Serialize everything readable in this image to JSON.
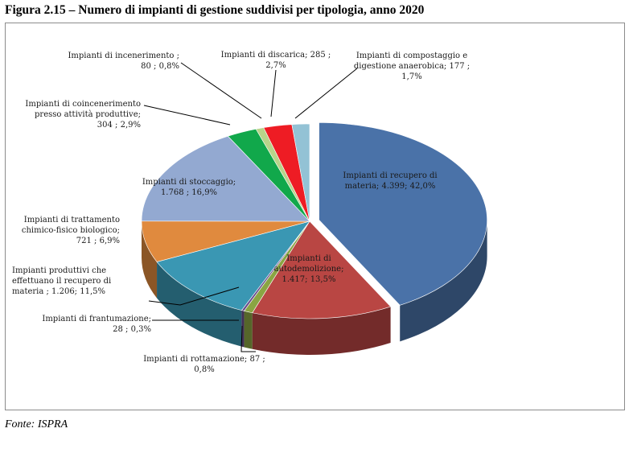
{
  "title": "Figura 2.15 – Numero di impianti di gestione suddivisi per tipologia, anno 2020",
  "source": "Fonte: ISPRA",
  "chart_data": {
    "type": "pie",
    "style": "3d-exploded",
    "legend": "none",
    "slices": [
      {
        "name": "Impianti di recupero di materia",
        "value": 4399,
        "value_label": "4.399",
        "percent_label": "42,0%",
        "color": "#4a72a8",
        "label_lines": [
          "Impianti di recupero di",
          "materia;  4.399; 42,0%"
        ]
      },
      {
        "name": "Impianti di autodemolizione",
        "value": 1417,
        "value_label": "1.417",
        "percent_label": "13,5%",
        "color": "#b94643",
        "label_lines": [
          "Impianti di",
          "autodemolizione;",
          "1.417; 13,5%"
        ]
      },
      {
        "name": "Impianti di rottamazione",
        "value": 87,
        "value_label": "87",
        "percent_label": "0,8%",
        "color": "#8aa543",
        "label_lines": [
          "Impianti di rottamazione;  87 ;",
          "0,8%"
        ]
      },
      {
        "name": "Impianti di frantumazione",
        "value": 28,
        "value_label": "28",
        "percent_label": "0,3%",
        "color": "#6a4d8c",
        "label_lines": [
          "Impianti di frantumazione;",
          "28 ; 0,3%"
        ]
      },
      {
        "name": "Impianti  produttivi che effettuano il recupero di materia",
        "value": 1206,
        "value_label": "1.206",
        "percent_label": "11,5%",
        "color": "#3a97b3",
        "label_lines": [
          "Impianti  produttivi che",
          "effettuano il recupero di",
          "materia ;  1.206; 11,5%"
        ]
      },
      {
        "name": "Impianti di trattamento chimico-fisico biologico",
        "value": 721,
        "value_label": "721",
        "percent_label": "6,9%",
        "color": "#e08a3e",
        "label_lines": [
          "Impianti di trattamento",
          "chimico-fisico biologico;",
          "721 ; 6,9%"
        ]
      },
      {
        "name": "Impianti di stoccaggio",
        "value": 1768,
        "value_label": "1.768",
        "percent_label": "16,9%",
        "color": "#93a9d1",
        "label_lines": [
          "Impianti di stoccaggio;",
          "1.768 ; 16,9%"
        ]
      },
      {
        "name": "Impianti di coincenerimento presso attività produttive",
        "value": 304,
        "value_label": "304",
        "percent_label": "2,9%",
        "color": "#11a84b",
        "label_lines": [
          "Impianti di coincenerimento",
          "presso attività produttive;",
          "304 ; 2,9%"
        ]
      },
      {
        "name": "Impianti di incenerimento",
        "value": 80,
        "value_label": "80",
        "percent_label": "0,8%",
        "color": "#b9d48a",
        "label_lines": [
          "Impianti di incenerimento ;",
          "80 ; 0,8%"
        ]
      },
      {
        "name": "Impianti di discarica",
        "value": 285,
        "value_label": "285",
        "percent_label": "2,7%",
        "color": "#ee1c24",
        "label_lines": [
          "Impianti di discarica;  285 ;",
          "2,7%"
        ]
      },
      {
        "name": "Impianti di compostaggio e digestione anaerobica",
        "value": 177,
        "value_label": "177",
        "percent_label": "1,7%",
        "color": "#93c2d5",
        "label_lines": [
          "Impianti di compostaggio e",
          "digestione anaerobica;  177 ;",
          "1,7%"
        ]
      }
    ]
  }
}
